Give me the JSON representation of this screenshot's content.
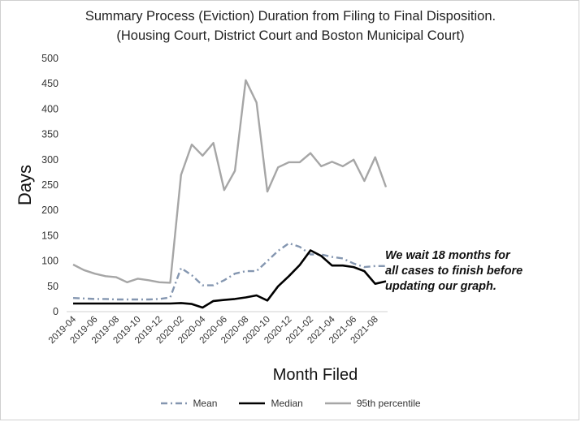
{
  "chart_data": {
    "type": "line",
    "title": "Summary Process (Eviction) Duration from Filing to Final Disposition.",
    "subtitle": "(Housing Court, District Court and Boston Municipal Court)",
    "xlabel": "Month Filed",
    "ylabel": "Days",
    "ylim": [
      0,
      500
    ],
    "yticks": [
      0,
      50,
      100,
      150,
      200,
      250,
      300,
      350,
      400,
      450,
      500
    ],
    "grid": false,
    "legend_position": "bottom",
    "x": [
      "2019-04",
      "2019-05",
      "2019-06",
      "2019-07",
      "2019-08",
      "2019-09",
      "2019-10",
      "2019-11",
      "2019-12",
      "2020-01",
      "2020-02",
      "2020-03",
      "2020-04",
      "2020-05",
      "2020-06",
      "2020-07",
      "2020-08",
      "2020-09",
      "2020-10",
      "2020-11",
      "2020-12",
      "2021-01",
      "2021-02",
      "2021-03",
      "2021-04",
      "2021-05",
      "2021-06",
      "2021-07",
      "2021-08",
      "2021-09"
    ],
    "xticklabels": [
      "2019-04",
      "2019-06",
      "2019-08",
      "2019-10",
      "2019-12",
      "2020-02",
      "2020-04",
      "2020-06",
      "2020-08",
      "2020-10",
      "2020-12",
      "2021-02",
      "2021-04",
      "2021-06",
      "2021-08"
    ],
    "series": [
      {
        "name": "Mean",
        "color": "#8496b0",
        "style": "dash-dot",
        "values": [
          27,
          26,
          25,
          25,
          24,
          24,
          24,
          24,
          25,
          28,
          86,
          72,
          52,
          52,
          62,
          75,
          80,
          80,
          100,
          120,
          135,
          128,
          113,
          113,
          108,
          105,
          95,
          88,
          90,
          90
        ]
      },
      {
        "name": "Median",
        "color": "#000000",
        "style": "solid",
        "values": [
          16,
          16,
          16,
          16,
          16,
          16,
          16,
          16,
          16,
          16,
          17,
          15,
          8,
          21,
          23,
          25,
          28,
          32,
          22,
          50,
          70,
          92,
          121,
          110,
          91,
          91,
          88,
          80,
          55,
          60
        ]
      },
      {
        "name": "95th percentile",
        "color": "#a6a6a6",
        "style": "solid",
        "values": [
          93,
          82,
          75,
          70,
          68,
          58,
          65,
          62,
          58,
          57,
          270,
          330,
          308,
          333,
          240,
          278,
          457,
          413,
          237,
          285,
          295,
          295,
          313,
          287,
          296,
          287,
          300,
          258,
          305,
          246
        ]
      }
    ],
    "annotation": [
      "We wait 18 months for",
      "all cases to finish before",
      "updating our graph."
    ]
  }
}
